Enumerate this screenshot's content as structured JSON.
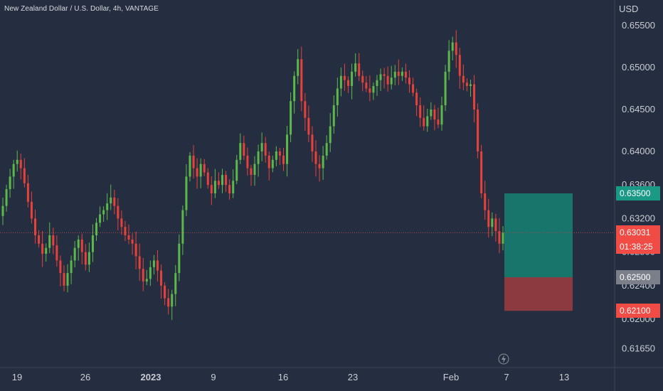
{
  "header": {
    "title": "New Zealand Dollar / U.S. Dollar, 4h, VANTAGE",
    "currency": "USD"
  },
  "colors": {
    "background": "#252e40",
    "up": "#5cb84a",
    "down": "#e8403a",
    "target_zone": "#17756b",
    "stop_zone": "#8c3a40",
    "tag_target": "#1b9987",
    "tag_current": "#f04b45",
    "tag_entry": "#7b7f89",
    "tag_stop": "#f04b45"
  },
  "axis_labels": {
    "y_ticks": [
      "0.65500",
      "0.65000",
      "0.64500",
      "0.64000",
      "0.63600",
      "0.63200",
      "0.62800",
      "0.62400",
      "0.62000",
      "0.61650"
    ],
    "x_ticks": [
      "19",
      "26",
      "2023",
      "9",
      "16",
      "23",
      "Feb",
      "7",
      "13"
    ]
  },
  "price_tags": {
    "target": "0.63500",
    "current_price": "0.63031",
    "countdown": "01:38:25",
    "entry": "0.62500",
    "stop": "0.62100"
  },
  "chart_data": {
    "type": "candlestick",
    "title": "New Zealand Dollar / U.S. Dollar, 4h, VANTAGE",
    "y_unit": "USD",
    "ylim": [
      0.6155,
      0.657
    ],
    "y_ticks": [
      0.655,
      0.65,
      0.645,
      0.64,
      0.636,
      0.632,
      0.628,
      0.624,
      0.62,
      0.6165
    ],
    "x_ticks": [
      "19",
      "26",
      "2023",
      "9",
      "16",
      "23",
      "Feb",
      "7",
      "13"
    ],
    "grid": false,
    "ohlc_close_path": [
      0.6335,
      0.6355,
      0.637,
      0.6385,
      0.639,
      0.638,
      0.6362,
      0.634,
      0.632,
      0.63,
      0.629,
      0.6278,
      0.6285,
      0.63,
      0.6288,
      0.627,
      0.6255,
      0.624,
      0.6255,
      0.627,
      0.6285,
      0.6295,
      0.628,
      0.6265,
      0.628,
      0.63,
      0.6315,
      0.6325,
      0.633,
      0.6338,
      0.6345,
      0.6335,
      0.632,
      0.631,
      0.63,
      0.6295,
      0.629,
      0.6275,
      0.626,
      0.6245,
      0.6248,
      0.6262,
      0.627,
      0.6258,
      0.624,
      0.6225,
      0.6215,
      0.623,
      0.6255,
      0.629,
      0.633,
      0.637,
      0.6395,
      0.638,
      0.637,
      0.6385,
      0.6375,
      0.636,
      0.635,
      0.6365,
      0.636,
      0.6372,
      0.636,
      0.635,
      0.6365,
      0.639,
      0.641,
      0.6395,
      0.638,
      0.6372,
      0.6385,
      0.64,
      0.641,
      0.6395,
      0.638,
      0.639,
      0.64,
      0.6395,
      0.6385,
      0.642,
      0.646,
      0.649,
      0.651,
      0.646,
      0.644,
      0.642,
      0.64,
      0.6385,
      0.638,
      0.6395,
      0.641,
      0.643,
      0.6455,
      0.6475,
      0.649,
      0.6485,
      0.6478,
      0.6495,
      0.6505,
      0.649,
      0.6482,
      0.6475,
      0.647,
      0.6478,
      0.6485,
      0.6492,
      0.649,
      0.648,
      0.6488,
      0.6495,
      0.649,
      0.6495,
      0.6488,
      0.648,
      0.647,
      0.6455,
      0.644,
      0.643,
      0.6442,
      0.645,
      0.6438,
      0.6432,
      0.6455,
      0.6495,
      0.652,
      0.653,
      0.6515,
      0.649,
      0.6482,
      0.6478,
      0.648,
      0.645,
      0.64,
      0.635,
      0.633,
      0.631,
      0.632,
      0.6305,
      0.629,
      0.6303
    ],
    "annotations": [
      {
        "type": "long_position",
        "target": 0.635,
        "entry": 0.625,
        "stop": 0.621
      },
      {
        "type": "price_line",
        "value": 0.63031
      }
    ]
  }
}
